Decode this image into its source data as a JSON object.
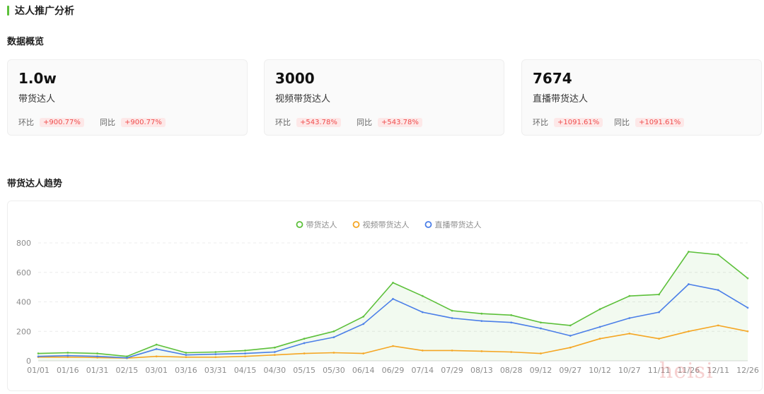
{
  "header": {
    "title": "达人推广分析"
  },
  "overview": {
    "title": "数据概览",
    "cards": [
      {
        "value": "1.0w",
        "label": "带货达人",
        "mom_label": "环比",
        "mom": "+900.77%",
        "yoy_label": "同比",
        "yoy": "+900.77%"
      },
      {
        "value": "3000",
        "label": "视频带货达人",
        "mom_label": "环比",
        "mom": "+543.78%",
        "yoy_label": "同比",
        "yoy": "+543.78%"
      },
      {
        "value": "7674",
        "label": "直播带货达人",
        "mom_label": "环比",
        "mom": "+1091.61%",
        "yoy_label": "同比",
        "yoy": "+1091.61%"
      }
    ]
  },
  "trend": {
    "title": "带货达人趋势"
  },
  "watermark": "heisi",
  "chart_data": {
    "type": "line",
    "x": [
      "01/01",
      "01/16",
      "01/31",
      "02/15",
      "03/01",
      "03/16",
      "03/31",
      "04/15",
      "04/30",
      "05/15",
      "05/30",
      "06/14",
      "06/29",
      "07/14",
      "07/29",
      "08/13",
      "08/28",
      "09/12",
      "09/27",
      "10/12",
      "10/27",
      "11/11",
      "11/26",
      "12/11",
      "12/26"
    ],
    "ylim": [
      0,
      800
    ],
    "yticks": [
      0,
      200,
      400,
      600,
      800
    ],
    "grid": true,
    "legend_position": "top-center",
    "series": [
      {
        "name": "带货达人",
        "color": "#5cc03a",
        "area": true,
        "values": [
          50,
          55,
          50,
          30,
          110,
          55,
          60,
          70,
          90,
          150,
          200,
          300,
          530,
          440,
          340,
          320,
          310,
          260,
          240,
          350,
          440,
          450,
          740,
          720,
          560
        ]
      },
      {
        "name": "视频带货达人",
        "color": "#f5a623",
        "values": [
          25,
          25,
          22,
          18,
          30,
          25,
          25,
          30,
          40,
          50,
          55,
          50,
          100,
          70,
          70,
          65,
          60,
          50,
          90,
          150,
          185,
          150,
          200,
          240,
          200
        ]
      },
      {
        "name": "直播带货达人",
        "color": "#4a7ee8",
        "values": [
          30,
          35,
          30,
          20,
          80,
          40,
          45,
          50,
          60,
          120,
          160,
          250,
          420,
          330,
          290,
          270,
          260,
          220,
          170,
          230,
          290,
          330,
          520,
          480,
          360
        ]
      }
    ]
  }
}
